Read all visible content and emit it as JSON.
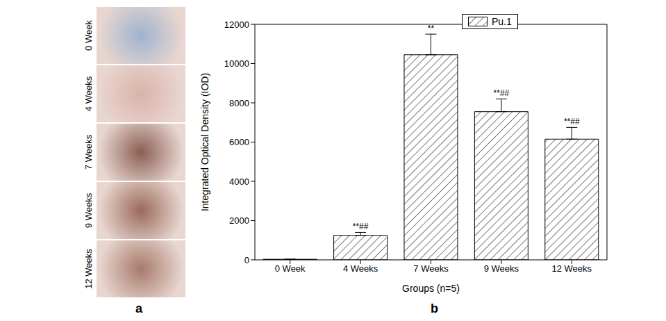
{
  "chart_data": {
    "type": "bar",
    "categories": [
      "0 Week",
      "4 Weeks",
      "7 Weeks",
      "9 Weeks",
      "12 Weeks"
    ],
    "series": [
      {
        "name": "Pu.1",
        "color": "#222222",
        "values": [
          30,
          1250,
          10450,
          7550,
          6150
        ],
        "errors": [
          0,
          150,
          1050,
          650,
          600
        ],
        "annotations": [
          null,
          "**##",
          "**",
          "**##",
          "**##"
        ]
      }
    ],
    "x_label": "Groups (n=5)",
    "y_label": "Integrated Optical Density (IOD)",
    "ylim": [
      0,
      12000
    ],
    "yticks": [
      0,
      2000,
      4000,
      6000,
      8000,
      10000,
      12000
    ],
    "grid": false,
    "legend": "upper left"
  },
  "figure": {
    "panel_labels": [
      "a",
      "b"
    ],
    "image_rows": [
      "0 Week",
      "4 Weeks",
      "7 Weeks",
      "9 Weeks",
      "12 Weeks"
    ]
  }
}
